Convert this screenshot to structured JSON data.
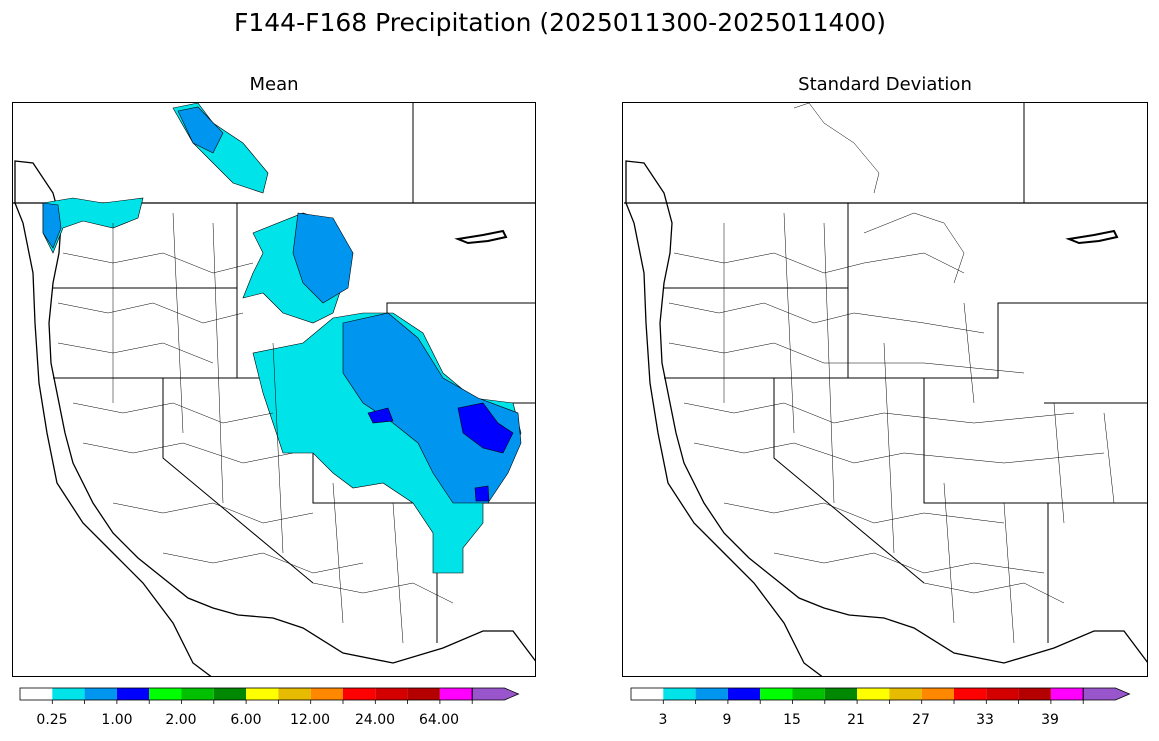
{
  "title": "F144-F168 Precipitation (2025011300-2025011400)",
  "panels": [
    {
      "title": "Mean",
      "colorbar": {
        "colors": [
          "#ffffff",
          "#00e3e8",
          "#0096f0",
          "#0000ff",
          "#00ff00",
          "#00c000",
          "#008800",
          "#ffff00",
          "#e7bb00",
          "#ff8800",
          "#ff0000",
          "#d40000",
          "#b40000",
          "#ff00ff",
          "#9955cc"
        ],
        "tick_labels": [
          "0.25",
          "1.00",
          "2.00",
          "6.00",
          "12.00",
          "24.00",
          "64.00"
        ]
      }
    },
    {
      "title": "Standard Deviation",
      "colorbar": {
        "colors": [
          "#ffffff",
          "#00e3e8",
          "#0096f0",
          "#0000ff",
          "#00ff00",
          "#00c000",
          "#008800",
          "#ffff00",
          "#e7bb00",
          "#ff8800",
          "#ff0000",
          "#d40000",
          "#b40000",
          "#ff00ff",
          "#9955cc"
        ],
        "tick_labels": [
          "3",
          "9",
          "15",
          "21",
          "27",
          "33",
          "39"
        ]
      }
    }
  ],
  "legend_color_names": [
    "white",
    "cyan",
    "sky-blue",
    "blue",
    "lime",
    "green",
    "dark-green",
    "yellow",
    "gold",
    "orange",
    "red",
    "crimson",
    "dark-red",
    "magenta",
    "purple"
  ]
}
